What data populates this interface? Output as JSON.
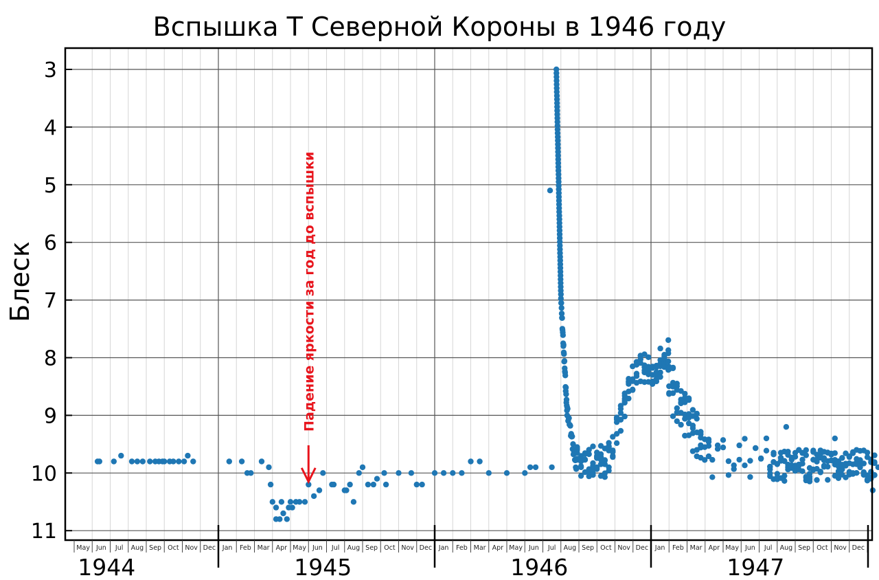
{
  "chart_data": {
    "type": "scatter",
    "title": "Вспышка T Северной Короны в 1946 году",
    "ylabel": "Блеск",
    "xlabel": "",
    "y_inverted": true,
    "ylim": [
      11,
      3
    ],
    "yticks": [
      "3",
      "4",
      "5",
      "6",
      "7",
      "8",
      "9",
      "10",
      "11"
    ],
    "x_range": [
      "1944-04",
      "1948-01"
    ],
    "year_labels": [
      {
        "year": "1944",
        "month_offset": 4
      },
      {
        "year": "1945",
        "month_offset": 16
      },
      {
        "year": "1946",
        "month_offset": 28
      },
      {
        "year": "1947",
        "month_offset": 40
      }
    ],
    "month_labels": [
      "May",
      "Jun",
      "Jul",
      "Aug",
      "Sep",
      "Oct",
      "Nov",
      "Dec",
      "Jan",
      "Feb",
      "Mar",
      "Apr",
      "May",
      "Jun",
      "Jul",
      "Aug",
      "Sep",
      "Oct",
      "Nov",
      "Dec",
      "Jan",
      "Feb",
      "Mar",
      "Apr",
      "May",
      "Jun",
      "Jul",
      "Aug",
      "Sep",
      "Oct",
      "Nov",
      "Dec",
      "Jan",
      "Feb",
      "Mar",
      "Apr",
      "May",
      "Jun",
      "Jul",
      "Aug",
      "Sep",
      "Oct",
      "Nov",
      "Dec"
    ],
    "annotation": {
      "text": "Падение яркости за год до вспышки",
      "x_month": 13.0,
      "y_top": 9.4,
      "y_bottom": 10.15
    },
    "marker_color": "#1f77b4",
    "annotation_color": "#e8141c",
    "series": [
      {
        "x_month_offset": [
          1.3,
          1.4,
          2.2,
          2.6,
          3.2,
          3.5,
          3.8,
          4.2,
          4.5,
          4.7,
          4.9,
          5.0,
          5.3,
          5.5,
          5.8,
          6.1,
          6.3,
          6.6,
          8.6,
          9.3,
          9.6,
          9.8,
          10.4,
          10.8,
          10.9,
          11.0,
          11.2,
          11.2,
          11.4,
          11.5,
          11.6,
          11.8,
          11.9,
          12.0,
          12.1,
          12.3,
          12.5,
          12.8,
          13.0,
          13.3,
          13.6,
          13.8,
          14.3,
          14.4,
          15.0,
          15.1,
          15.3,
          15.5,
          15.8,
          16.0,
          16.3,
          16.6,
          16.8,
          17.2,
          17.3,
          18.0,
          18.7,
          19.0,
          19.3,
          20.0,
          20.5,
          21.0,
          21.5,
          22.0,
          22.5,
          23.0,
          24.0,
          25.0,
          25.3,
          25.6
        ],
        "y": [
          9.8,
          9.8,
          9.8,
          9.7,
          9.8,
          9.8,
          9.8,
          9.8,
          9.8,
          9.8,
          9.8,
          9.8,
          9.8,
          9.8,
          9.8,
          9.8,
          9.7,
          9.8,
          9.8,
          9.8,
          10.0,
          10.0,
          9.8,
          9.9,
          10.2,
          10.5,
          10.6,
          10.8,
          10.8,
          10.5,
          10.7,
          10.8,
          10.6,
          10.5,
          10.6,
          10.5,
          10.5,
          10.5,
          10.2,
          10.4,
          10.3,
          10.0,
          10.2,
          10.2,
          10.3,
          10.3,
          10.2,
          10.5,
          10.0,
          9.9,
          10.2,
          10.2,
          10.1,
          10.0,
          10.2,
          10.0,
          10.0,
          10.2,
          10.2,
          10.0,
          10.0,
          10.0,
          10.0,
          9.8,
          9.8,
          10.0,
          10.0,
          10.0,
          9.9,
          9.9
        ]
      }
    ]
  }
}
